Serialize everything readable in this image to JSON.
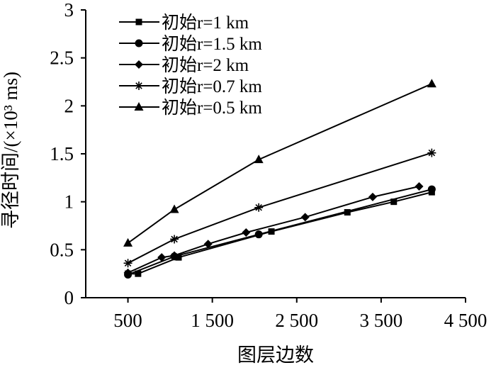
{
  "chart_data": {
    "type": "line",
    "xlabel": "图层边数",
    "ylabel": "寻径时间/(×10³ ms)",
    "xlim": [
      0,
      4500
    ],
    "ylim": [
      0,
      3
    ],
    "x_ticks": [
      500,
      1500,
      2500,
      3500,
      4500
    ],
    "x_tick_labels": [
      "500",
      "1 500",
      "2 500",
      "3 500",
      "4 500"
    ],
    "y_ticks": [
      0,
      0.5,
      1,
      1.5,
      2,
      2.5,
      3
    ],
    "y_tick_labels": [
      "0",
      "0.5",
      "1",
      "1.5",
      "2",
      "2.5",
      "3"
    ],
    "grid": false,
    "legend_position": "top-left",
    "series": [
      {
        "name": "初始r=1 km",
        "marker": "square",
        "points": [
          [
            500,
            0.25
          ],
          [
            620,
            0.25
          ],
          [
            1100,
            0.42
          ],
          [
            2200,
            0.69
          ],
          [
            3100,
            0.89
          ],
          [
            3650,
            1.0
          ],
          [
            4100,
            1.1
          ]
        ]
      },
      {
        "name": "初始r=1.5 km",
        "marker": "circle",
        "points": [
          [
            500,
            0.24
          ],
          [
            1050,
            0.43
          ],
          [
            2050,
            0.66
          ],
          [
            4100,
            1.13
          ]
        ]
      },
      {
        "name": "初始r=2 km",
        "marker": "diamond",
        "points": [
          [
            500,
            0.26
          ],
          [
            900,
            0.42
          ],
          [
            1050,
            0.44
          ],
          [
            1450,
            0.56
          ],
          [
            1900,
            0.68
          ],
          [
            2600,
            0.84
          ],
          [
            3400,
            1.05
          ],
          [
            3950,
            1.16
          ]
        ]
      },
      {
        "name": "初始r=0.7 km",
        "marker": "star",
        "points": [
          [
            500,
            0.36
          ],
          [
            1050,
            0.61
          ],
          [
            2050,
            0.94
          ],
          [
            4100,
            1.51
          ]
        ]
      },
      {
        "name": "初始r=0.5 km",
        "marker": "triangle",
        "points": [
          [
            500,
            0.57
          ],
          [
            1050,
            0.92
          ],
          [
            2050,
            1.44
          ],
          [
            4100,
            2.23
          ]
        ]
      }
    ]
  }
}
